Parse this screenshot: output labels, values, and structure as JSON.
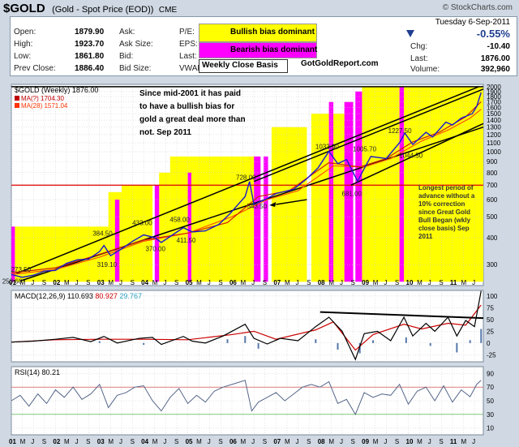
{
  "header": {
    "symbol": "$GOLD",
    "description": "(Gold - Spot Price (EOD))",
    "exchange": "CME",
    "watermark": "© StockCharts.com",
    "date": "Tuesday 6-Sep-2011",
    "pct_change": "-0.55%"
  },
  "quote": {
    "open_label": "Open:",
    "open": "1879.90",
    "high_label": "High:",
    "high": "1923.70",
    "low_label": "Low:",
    "low": "1861.80",
    "prev_close_label": "Prev Close:",
    "prev_close": "1886.40",
    "ask_label": "Ask:",
    "ask": "",
    "ask_size_label": "Ask Size:",
    "ask_size": "",
    "bid_label": "Bid:",
    "bid": "",
    "bid_size_label": "Bid Size:",
    "bid_size": "",
    "pe_label": "P/E:",
    "pe": "",
    "eps_label": "EPS:",
    "eps": "",
    "last_label": "Last:",
    "last_mid": "",
    "vwap_label": "VWAP:",
    "vwap": "",
    "chg_label": "Chg:",
    "chg": "-10.40",
    "last_label2": "Last:",
    "last": "1876.00",
    "volume_label": "Volume:",
    "volume": "392,960"
  },
  "legend_boxes": {
    "bullish": "Bullish bias dominant",
    "bearish": "Bearish bias dominant",
    "weekly": "Weekly Close Basis",
    "site": "GotGoldReport.com"
  },
  "colors": {
    "bullish": "#ffff00",
    "bearish": "#ff00ff",
    "price": "#1a1acc",
    "ma_fast": "#cc2200",
    "ma_slow": "#ff5500",
    "support": "#dd0000",
    "trend": "#000000"
  },
  "chart_data": [
    {
      "type": "line",
      "title": "$GOLD (Weekly) 1876.00",
      "legend": [
        {
          "name": "MA(?) 1704.30",
          "color": "#c00000"
        },
        {
          "name": "MA(28) 1571.04",
          "color": "#ff3300"
        }
      ],
      "x_ticks": [
        "01",
        "M",
        "J",
        "S",
        "02",
        "M",
        "J",
        "S",
        "03",
        "M",
        "J",
        "S",
        "04",
        "M",
        "J",
        "S",
        "05",
        "M",
        "J",
        "S",
        "06",
        "M",
        "J",
        "S",
        "07",
        "M",
        "J",
        "S",
        "08",
        "M",
        "J",
        "S",
        "09",
        "M",
        "J",
        "S",
        "10",
        "M",
        "J",
        "S",
        "11",
        "M",
        "J"
      ],
      "x_range": [
        2001.0,
        2011.7
      ],
      "y_scale": "log",
      "y_ticks": [
        300,
        400,
        500,
        600,
        700,
        800,
        900,
        1000,
        1100,
        1200,
        1300,
        1400,
        1500,
        1600,
        1700,
        1800,
        1900,
        2000
      ],
      "price": [
        [
          2001.0,
          270
        ],
        [
          2001.25,
          262
        ],
        [
          2001.5,
          268
        ],
        [
          2001.75,
          280
        ],
        [
          2002.0,
          282
        ],
        [
          2002.25,
          304
        ],
        [
          2002.5,
          316
        ],
        [
          2002.75,
          318
        ],
        [
          2003.0,
          345
        ],
        [
          2003.1,
          368
        ],
        [
          2003.25,
          330
        ],
        [
          2003.5,
          355
        ],
        [
          2003.75,
          385
        ],
        [
          2004.0,
          412
        ],
        [
          2004.25,
          400
        ],
        [
          2004.4,
          380
        ],
        [
          2004.6,
          405
        ],
        [
          2004.9,
          445
        ],
        [
          2005.1,
          425
        ],
        [
          2005.4,
          430
        ],
        [
          2005.7,
          460
        ],
        [
          2005.95,
          515
        ],
        [
          2006.3,
          620
        ],
        [
          2006.4,
          728
        ],
        [
          2006.5,
          570
        ],
        [
          2006.75,
          600
        ],
        [
          2007.0,
          640
        ],
        [
          2007.4,
          670
        ],
        [
          2007.7,
          750
        ],
        [
          2007.95,
          840
        ],
        [
          2008.2,
          1003
        ],
        [
          2008.4,
          880
        ],
        [
          2008.6,
          920
        ],
        [
          2008.85,
          730
        ],
        [
          2008.95,
          800
        ],
        [
          2009.15,
          950
        ],
        [
          2009.5,
          930
        ],
        [
          2009.8,
          1100
        ],
        [
          2009.92,
          1220
        ],
        [
          2010.1,
          1080
        ],
        [
          2010.4,
          1230
        ],
        [
          2010.55,
          1170
        ],
        [
          2010.85,
          1370
        ],
        [
          2011.0,
          1330
        ],
        [
          2011.2,
          1430
        ],
        [
          2011.45,
          1500
        ],
        [
          2011.55,
          1620
        ],
        [
          2011.65,
          1880
        ]
      ],
      "ma1": [
        [
          2001.0,
          275
        ],
        [
          2002.0,
          290
        ],
        [
          2003.0,
          335
        ],
        [
          2004.0,
          390
        ],
        [
          2005.0,
          420
        ],
        [
          2005.9,
          470
        ],
        [
          2006.6,
          620
        ],
        [
          2007.3,
          660
        ],
        [
          2008.2,
          890
        ],
        [
          2008.9,
          850
        ],
        [
          2009.5,
          930
        ],
        [
          2010.1,
          1110
        ],
        [
          2010.7,
          1230
        ],
        [
          2011.3,
          1450
        ],
        [
          2011.65,
          1704
        ]
      ],
      "ma2": [
        [
          2001.0,
          270
        ],
        [
          2002.0,
          285
        ],
        [
          2003.0,
          325
        ],
        [
          2004.0,
          385
        ],
        [
          2005.0,
          420
        ],
        [
          2006.0,
          500
        ],
        [
          2006.8,
          600
        ],
        [
          2007.5,
          660
        ],
        [
          2008.3,
          860
        ],
        [
          2009.0,
          850
        ],
        [
          2009.6,
          930
        ],
        [
          2010.3,
          1120
        ],
        [
          2010.9,
          1260
        ],
        [
          2011.4,
          1430
        ],
        [
          2011.65,
          1571
        ]
      ],
      "labels": [
        {
          "text": "273.50",
          "x": 2001.25,
          "y": 285
        },
        {
          "text": "250.60",
          "x": 2001.05,
          "y": 252
        },
        {
          "text": "384.50",
          "x": 2003.1,
          "y": 420
        },
        {
          "text": "319.10",
          "x": 2003.2,
          "y": 300
        },
        {
          "text": "433.00",
          "x": 2004.0,
          "y": 470
        },
        {
          "text": "370.00",
          "x": 2004.3,
          "y": 355
        },
        {
          "text": "458.00",
          "x": 2004.85,
          "y": 485
        },
        {
          "text": "411.50",
          "x": 2005.0,
          "y": 390
        },
        {
          "text": "728.00",
          "x": 2006.35,
          "y": 760
        },
        {
          "text": "543.50",
          "x": 2006.6,
          "y": 560
        },
        {
          "text": "1033.90",
          "x": 2008.15,
          "y": 1060
        },
        {
          "text": "1005.70",
          "x": 2009.0,
          "y": 1030
        },
        {
          "text": "681.00",
          "x": 2008.75,
          "y": 640
        },
        {
          "text": "1227.50",
          "x": 2009.8,
          "y": 1250
        },
        {
          "text": "1044.50",
          "x": 2010.05,
          "y": 960
        }
      ],
      "bullish_zones": [
        [
          2001.08,
          2003.2,
          250,
          450
        ],
        [
          2003.2,
          2003.5,
          250,
          650
        ],
        [
          2003.5,
          2004.2,
          250,
          700
        ],
        [
          2004.35,
          2004.6,
          250,
          800
        ],
        [
          2004.6,
          2005.0,
          250,
          950
        ],
        [
          2005.0,
          2006.2,
          250,
          950
        ],
        [
          2006.2,
          2006.6,
          250,
          950
        ],
        [
          2006.9,
          2007.7,
          250,
          1300
        ],
        [
          2007.8,
          2008.2,
          250,
          1500
        ],
        [
          2008.3,
          2008.55,
          250,
          1500
        ],
        [
          2008.55,
          2008.75,
          250,
          1700
        ],
        [
          2008.95,
          2009.8,
          250,
          2000
        ],
        [
          2009.9,
          2010.8,
          250,
          2000
        ],
        [
          2010.8,
          2011.7,
          250,
          2000
        ]
      ],
      "bearish_zones": [
        [
          2001.0,
          2001.08,
          250,
          450
        ],
        [
          2003.35,
          2003.45,
          250,
          600
        ],
        [
          2004.25,
          2004.35,
          250,
          700
        ],
        [
          2005.0,
          2005.08,
          250,
          800
        ],
        [
          2006.5,
          2006.65,
          250,
          950
        ],
        [
          2006.72,
          2006.82,
          250,
          950
        ],
        [
          2008.2,
          2008.3,
          250,
          1700
        ],
        [
          2008.55,
          2008.75,
          250,
          1700
        ],
        [
          2008.8,
          2008.95,
          250,
          1900
        ],
        [
          2009.8,
          2009.9,
          250,
          2000
        ]
      ],
      "support_level": 700,
      "annotation_main": [
        "Since mid-2001 it has paid",
        "to have a bullish bias for",
        "gold a great deal more than",
        "not. Sep 2011"
      ],
      "annotation_side": [
        "Longest period of",
        "advance without a",
        "10% correction",
        "since Great Gold",
        "Bull Began (wkly",
        "close basis) Sep",
        "2011"
      ]
    },
    {
      "type": "line",
      "title": "MACD(12,26,9) 110.693, 80.927, 29.767",
      "legend": [
        {
          "name": "MACD(12,26,9) 110.693",
          "color": "#000000"
        },
        {
          "name": "80.927",
          "color": "#cc0000"
        },
        {
          "name": "29.767",
          "color": "#2aa0c0"
        }
      ],
      "y_ticks": [
        -25,
        0,
        25,
        50,
        75,
        100
      ],
      "y_range": [
        -40,
        112
      ],
      "macd": [
        [
          2001.0,
          2
        ],
        [
          2001.5,
          4
        ],
        [
          2002.0,
          8
        ],
        [
          2002.4,
          12
        ],
        [
          2002.8,
          3
        ],
        [
          2003.1,
          14
        ],
        [
          2003.4,
          0
        ],
        [
          2003.9,
          10
        ],
        [
          2004.2,
          12
        ],
        [
          2004.4,
          -3
        ],
        [
          2004.9,
          14
        ],
        [
          2005.1,
          4
        ],
        [
          2005.4,
          0
        ],
        [
          2005.8,
          15
        ],
        [
          2006.3,
          40
        ],
        [
          2006.5,
          10
        ],
        [
          2006.8,
          -2
        ],
        [
          2007.1,
          10
        ],
        [
          2007.5,
          5
        ],
        [
          2007.9,
          35
        ],
        [
          2008.2,
          55
        ],
        [
          2008.5,
          25
        ],
        [
          2008.8,
          -35
        ],
        [
          2009.0,
          20
        ],
        [
          2009.3,
          25
        ],
        [
          2009.6,
          5
        ],
        [
          2009.9,
          55
        ],
        [
          2010.1,
          15
        ],
        [
          2010.4,
          42
        ],
        [
          2010.6,
          25
        ],
        [
          2010.9,
          55
        ],
        [
          2011.1,
          15
        ],
        [
          2011.3,
          48
        ],
        [
          2011.5,
          35
        ],
        [
          2011.65,
          111
        ]
      ],
      "signal": [
        [
          2001.0,
          2
        ],
        [
          2002.0,
          7
        ],
        [
          2003.0,
          8
        ],
        [
          2004.0,
          8
        ],
        [
          2005.0,
          7
        ],
        [
          2006.0,
          18
        ],
        [
          2006.5,
          25
        ],
        [
          2007.0,
          8
        ],
        [
          2007.9,
          28
        ],
        [
          2008.3,
          45
        ],
        [
          2008.8,
          -15
        ],
        [
          2009.2,
          18
        ],
        [
          2009.9,
          40
        ],
        [
          2010.3,
          30
        ],
        [
          2010.9,
          42
        ],
        [
          2011.3,
          38
        ],
        [
          2011.65,
          81
        ]
      ],
      "histogram": [
        [
          2001.5,
          0
        ],
        [
          2003.0,
          4
        ],
        [
          2004.0,
          -4
        ],
        [
          2005.9,
          8
        ],
        [
          2006.3,
          15
        ],
        [
          2006.6,
          -12
        ],
        [
          2007.9,
          8
        ],
        [
          2008.4,
          -14
        ],
        [
          2008.9,
          -22
        ],
        [
          2009.2,
          6
        ],
        [
          2009.95,
          12
        ],
        [
          2010.5,
          -6
        ],
        [
          2011.1,
          -20
        ],
        [
          2011.4,
          6
        ],
        [
          2011.65,
          30
        ]
      ],
      "trendline": [
        [
          2008.0,
          66
        ],
        [
          2011.7,
          53
        ]
      ]
    },
    {
      "type": "line",
      "title": "RSI(14) 80.21",
      "y_ticks": [
        10,
        30,
        50,
        70,
        90
      ],
      "y_range": [
        0,
        100
      ],
      "rsi": [
        [
          2001.0,
          50
        ],
        [
          2001.2,
          58
        ],
        [
          2001.4,
          42
        ],
        [
          2001.6,
          60
        ],
        [
          2001.8,
          46
        ],
        [
          2002.0,
          66
        ],
        [
          2002.2,
          55
        ],
        [
          2002.4,
          70
        ],
        [
          2002.6,
          52
        ],
        [
          2002.8,
          60
        ],
        [
          2003.0,
          74
        ],
        [
          2003.2,
          40
        ],
        [
          2003.4,
          58
        ],
        [
          2003.6,
          62
        ],
        [
          2003.8,
          70
        ],
        [
          2004.0,
          72
        ],
        [
          2004.2,
          50
        ],
        [
          2004.4,
          35
        ],
        [
          2004.6,
          55
        ],
        [
          2004.8,
          68
        ],
        [
          2005.0,
          46
        ],
        [
          2005.2,
          58
        ],
        [
          2005.4,
          48
        ],
        [
          2005.6,
          64
        ],
        [
          2005.8,
          70
        ],
        [
          2006.0,
          74
        ],
        [
          2006.3,
          80
        ],
        [
          2006.45,
          35
        ],
        [
          2006.6,
          48
        ],
        [
          2006.8,
          55
        ],
        [
          2007.0,
          62
        ],
        [
          2007.2,
          50
        ],
        [
          2007.4,
          60
        ],
        [
          2007.6,
          70
        ],
        [
          2007.8,
          74
        ],
        [
          2008.0,
          70
        ],
        [
          2008.2,
          78
        ],
        [
          2008.4,
          46
        ],
        [
          2008.6,
          52
        ],
        [
          2008.8,
          30
        ],
        [
          2009.0,
          62
        ],
        [
          2009.2,
          55
        ],
        [
          2009.4,
          60
        ],
        [
          2009.6,
          58
        ],
        [
          2009.8,
          74
        ],
        [
          2010.0,
          45
        ],
        [
          2010.2,
          64
        ],
        [
          2010.4,
          70
        ],
        [
          2010.6,
          50
        ],
        [
          2010.8,
          72
        ],
        [
          2011.0,
          48
        ],
        [
          2011.2,
          66
        ],
        [
          2011.4,
          56
        ],
        [
          2011.55,
          74
        ],
        [
          2011.65,
          80
        ]
      ]
    }
  ]
}
